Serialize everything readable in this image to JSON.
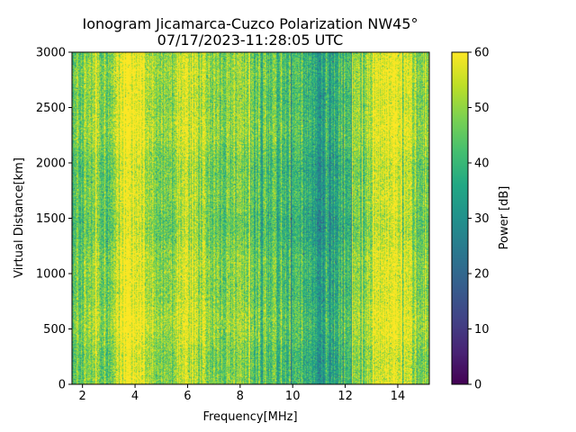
{
  "chart_data": {
    "type": "heatmap",
    "title": "Ionogram Jicamarca-Cuzco Polarization NW45°",
    "subtitle": "07/17/2023-11:28:05 UTC",
    "xlabel": "Frequency[MHz]",
    "ylabel": "Virtual Distance[km]",
    "colorbar_label": "Power [dB]",
    "colormap": "viridis",
    "xlim": [
      1.6,
      15.2
    ],
    "ylim": [
      0,
      3000
    ],
    "clim": [
      0,
      60
    ],
    "x_ticks": [
      2,
      4,
      6,
      8,
      10,
      12,
      14
    ],
    "x_tick_labels": [
      "2",
      "4",
      "6",
      "8",
      "10",
      "12",
      "14"
    ],
    "y_ticks": [
      0,
      500,
      1000,
      1500,
      2000,
      2500,
      3000
    ],
    "y_tick_labels": [
      "0",
      "500",
      "1000",
      "1500",
      "2000",
      "2500",
      "3000"
    ],
    "colorbar_ticks": [
      0,
      10,
      20,
      30,
      40,
      50,
      60
    ],
    "colorbar_tick_labels": [
      "0",
      "10",
      "20",
      "30",
      "40",
      "50",
      "60"
    ],
    "power_profile_by_frequency": {
      "frequency_mhz": [
        1.6,
        2.0,
        2.5,
        3.0,
        3.3,
        3.5,
        3.8,
        4.0,
        4.3,
        4.6,
        4.9,
        5.3,
        5.7,
        6.0,
        6.3,
        6.7,
        7.0,
        7.3,
        7.7,
        8.0,
        8.3,
        8.6,
        9.0,
        9.4,
        9.8,
        10.2,
        10.6,
        11.0,
        11.3,
        11.6,
        12.0,
        12.3,
        12.6,
        13.0,
        13.3,
        13.6,
        14.0,
        14.3,
        14.6,
        15.0,
        15.2
      ],
      "power_db": [
        43,
        46,
        48,
        47,
        54,
        58,
        59,
        59,
        58,
        52,
        50,
        49,
        54,
        55,
        52,
        50,
        50,
        49,
        48,
        50,
        47,
        45,
        43,
        42,
        42,
        41,
        38,
        35,
        33,
        36,
        42,
        45,
        48,
        54,
        57,
        59,
        59,
        55,
        52,
        48,
        46
      ]
    }
  }
}
